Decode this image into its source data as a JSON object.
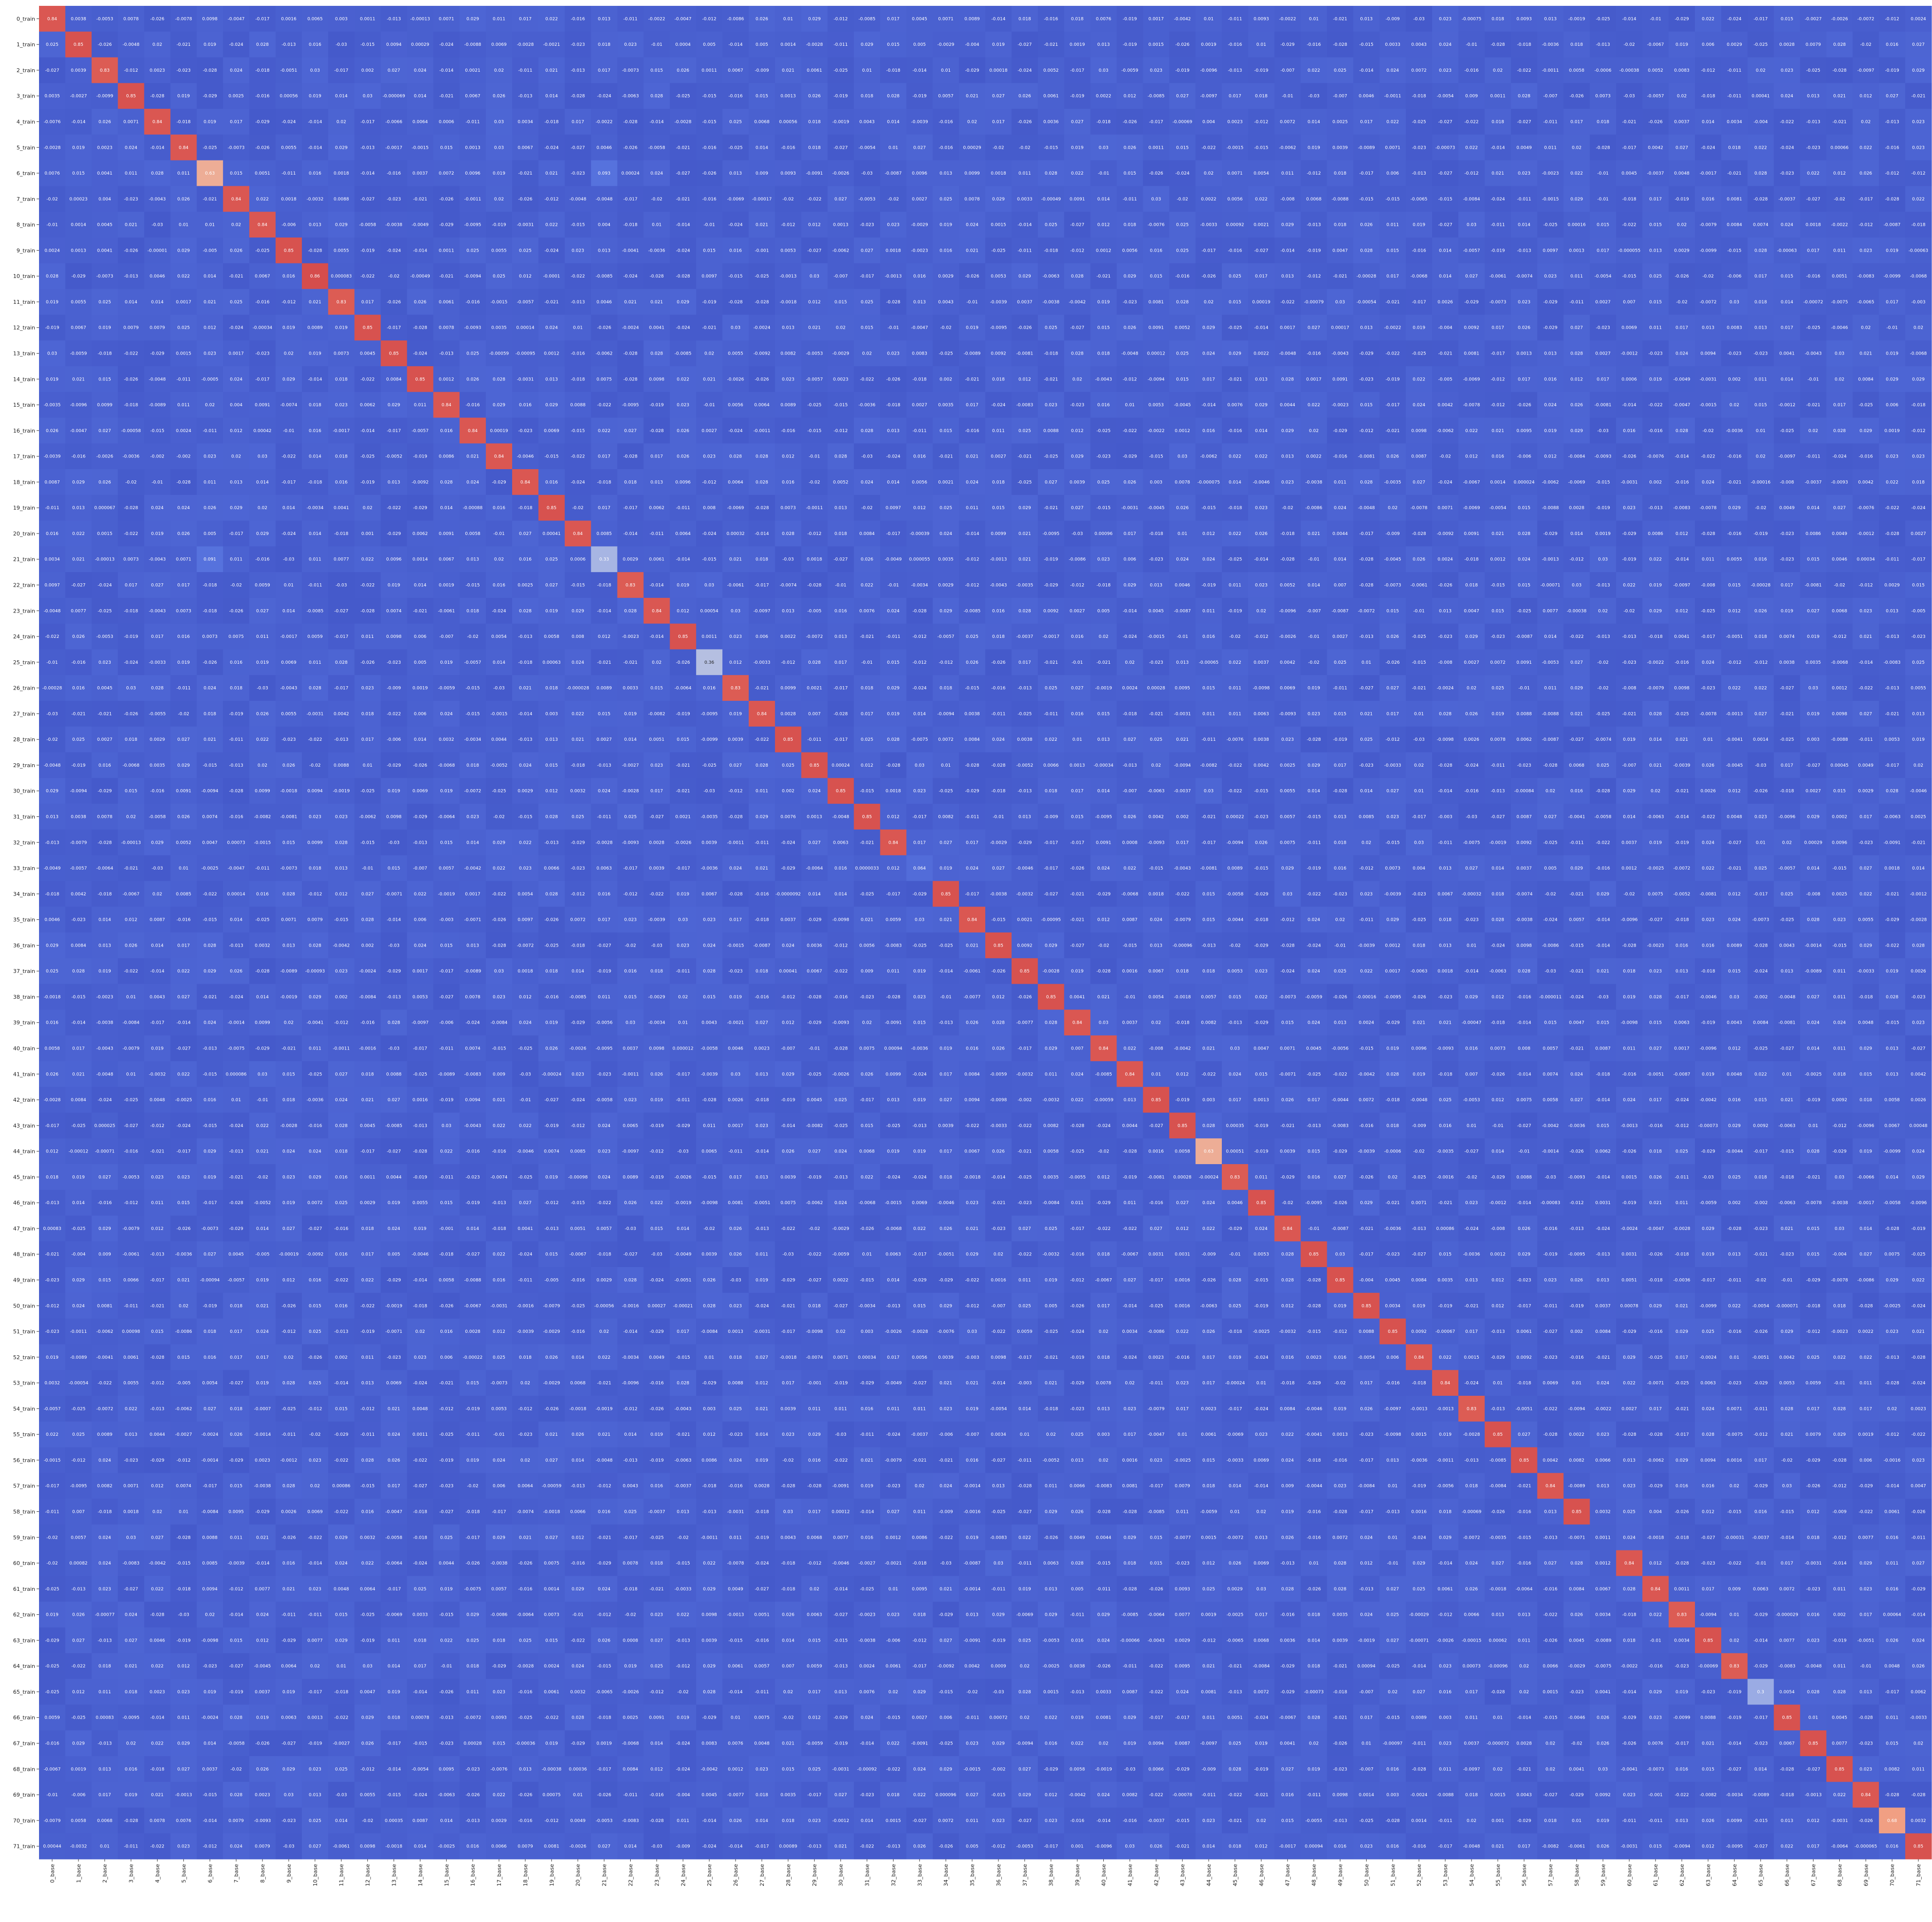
{
  "chart_data": {
    "type": "heatmap",
    "title": "",
    "xlabel": "",
    "ylabel": "",
    "row_labels": [
      "0_train",
      "1_train",
      "2_train",
      "3_train",
      "4_train",
      "5_train",
      "6_train",
      "7_train",
      "8_train",
      "9_train",
      "10_train",
      "11_train",
      "12_train",
      "13_train",
      "14_train",
      "15_train",
      "16_train",
      "17_train",
      "18_train",
      "19_train",
      "20_train",
      "21_train",
      "22_train",
      "23_train",
      "24_train",
      "25_train",
      "26_train",
      "27_train",
      "28_train",
      "29_train",
      "30_train",
      "31_train",
      "32_train",
      "33_train",
      "34_train",
      "35_train",
      "36_train",
      "37_train",
      "38_train",
      "39_train",
      "40_train",
      "41_train",
      "42_train",
      "43_train",
      "44_train",
      "45_train",
      "46_train",
      "47_train",
      "48_train",
      "49_train",
      "50_train",
      "51_train",
      "52_train",
      "53_train",
      "54_train",
      "55_train",
      "56_train",
      "57_train",
      "58_train",
      "59_train",
      "60_train",
      "61_train",
      "62_train",
      "63_train",
      "64_train",
      "65_train",
      "66_train",
      "67_train",
      "68_train",
      "69_train",
      "70_train",
      "71_train"
    ],
    "col_labels": [
      "0_base",
      "1_base",
      "2_base",
      "3_base",
      "4_base",
      "5_base",
      "6_base",
      "7_base",
      "8_base",
      "9_base",
      "10_base",
      "11_base",
      "12_base",
      "13_base",
      "14_base",
      "15_base",
      "16_base",
      "17_base",
      "18_base",
      "19_base",
      "20_base",
      "21_base",
      "22_base",
      "23_base",
      "24_base",
      "25_base",
      "26_base",
      "27_base",
      "28_base",
      "29_base",
      "30_base",
      "31_base",
      "32_base",
      "33_base",
      "34_base",
      "35_base",
      "36_base",
      "37_base",
      "38_base",
      "39_base",
      "40_base",
      "41_base",
      "42_base",
      "43_base",
      "44_base",
      "45_base",
      "46_base",
      "47_base",
      "48_base",
      "49_base",
      "50_base",
      "51_base",
      "52_base",
      "53_base",
      "54_base",
      "55_base",
      "56_base",
      "57_base",
      "58_base",
      "59_base",
      "60_base",
      "61_base",
      "62_base",
      "63_base",
      "64_base",
      "65_base",
      "66_base",
      "67_base",
      "68_base",
      "69_base",
      "70_base",
      "71_base"
    ],
    "diagonal": [
      0.84,
      0.85,
      0.83,
      0.85,
      0.84,
      0.84,
      0.63,
      0.84,
      0.84,
      0.85,
      0.86,
      0.83,
      0.85,
      0.85,
      0.85,
      0.84,
      0.84,
      0.84,
      0.84,
      0.85,
      0.84,
      0.33,
      0.83,
      0.84,
      0.85,
      0.36,
      0.83,
      0.84,
      0.85,
      0.85,
      0.85,
      0.85,
      0.84,
      0.064,
      0.85,
      0.84,
      0.85,
      0.85,
      0.85,
      0.84,
      0.84,
      0.84,
      0.85,
      0.85,
      0.63,
      0.83,
      0.85,
      0.84,
      0.85,
      0.85,
      0.85,
      0.85,
      0.84,
      0.84,
      0.83,
      0.85,
      0.85,
      0.84,
      0.85,
      0.0011,
      0.84,
      0.84,
      0.83,
      0.85,
      0.83,
      0.3,
      0.85,
      0.85,
      0.85,
      0.84,
      0.68,
      0.85
    ],
    "notable_offdiagonal": [
      {
        "row": "6_train",
        "col": "21_base",
        "value": 0.093
      },
      {
        "row": "21_train",
        "col": "6_base",
        "value": 0.091
      },
      {
        "row": "0_train",
        "col": "1_base",
        "value": 0.0038
      },
      {
        "row": "0_train",
        "col": "2_base",
        "value": -0.0053
      },
      {
        "row": "0_train",
        "col": "3_base",
        "value": 0.0078
      },
      {
        "row": "0_train",
        "col": "4_base",
        "value": -0.026
      },
      {
        "row": "0_train",
        "col": "5_base",
        "value": -0.0078
      },
      {
        "row": "0_train",
        "col": "6_base",
        "value": 0.0098
      },
      {
        "row": "0_train",
        "col": "7_base",
        "value": -0.0047
      },
      {
        "row": "0_train",
        "col": "8_base",
        "value": -0.017
      },
      {
        "row": "0_train",
        "col": "9_base",
        "value": 0.0016
      },
      {
        "row": "0_train",
        "col": "10_base",
        "value": 0.0065
      },
      {
        "row": "0_train",
        "col": "11_base",
        "value": 0.003
      },
      {
        "row": "0_train",
        "col": "12_base",
        "value": 0.0011
      }
    ],
    "value_range": [
      -0.1,
      1.0
    ],
    "colormap": "coolwarm",
    "colors": {
      "low": "#3b4cc0",
      "mid": "#dddddd",
      "high": "#b40426"
    },
    "grid": false,
    "legend": "none"
  }
}
